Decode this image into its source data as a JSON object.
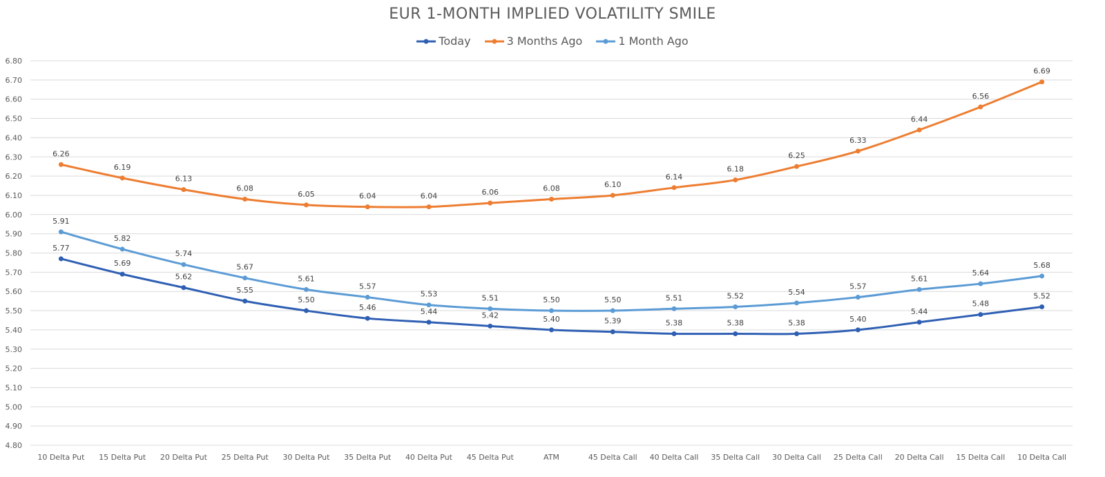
{
  "chart_data": {
    "type": "line",
    "title": "EUR 1-MONTH IMPLIED VOLATILITY SMILE",
    "categories": [
      "10 Delta Put",
      "15 Delta Put",
      "20 Delta Put",
      "25 Delta Put",
      "30 Delta Put",
      "35 Delta Put",
      "40 Delta Put",
      "45 Delta Put",
      "ATM",
      "45 Delta Call",
      "40 Delta Call",
      "35 Delta Call",
      "30 Delta Call",
      "25 Delta Call",
      "20 Delta Call",
      "15 Delta Call",
      "10 Delta Call"
    ],
    "series": [
      {
        "name": "Today",
        "color": "#2f5fb3",
        "values": [
          5.77,
          5.69,
          5.62,
          5.55,
          5.5,
          5.46,
          5.44,
          5.42,
          5.4,
          5.39,
          5.38,
          5.38,
          5.38,
          5.4,
          5.44,
          5.48,
          5.52
        ]
      },
      {
        "name": "3 Months Ago",
        "color": "#ed7d31",
        "values": [
          6.26,
          6.19,
          6.13,
          6.08,
          6.05,
          6.04,
          6.04,
          6.06,
          6.08,
          6.1,
          6.14,
          6.18,
          6.25,
          6.33,
          6.44,
          6.56,
          6.69
        ]
      },
      {
        "name": "1 Month Ago",
        "color": "#5b9bd5",
        "values": [
          5.91,
          5.82,
          5.74,
          5.67,
          5.61,
          5.57,
          5.53,
          5.51,
          5.5,
          5.5,
          5.51,
          5.52,
          5.54,
          5.57,
          5.61,
          5.64,
          5.68
        ]
      }
    ],
    "ylim": [
      4.8,
      6.8
    ],
    "yticks": [
      "4.80",
      "4.90",
      "5.00",
      "5.10",
      "5.20",
      "5.30",
      "5.40",
      "5.50",
      "5.60",
      "5.70",
      "5.80",
      "5.90",
      "6.00",
      "6.10",
      "6.20",
      "6.30",
      "6.40",
      "6.50",
      "6.60",
      "6.70",
      "6.80"
    ],
    "grid": true,
    "legend": "top-center",
    "xlabel": "",
    "ylabel": ""
  }
}
